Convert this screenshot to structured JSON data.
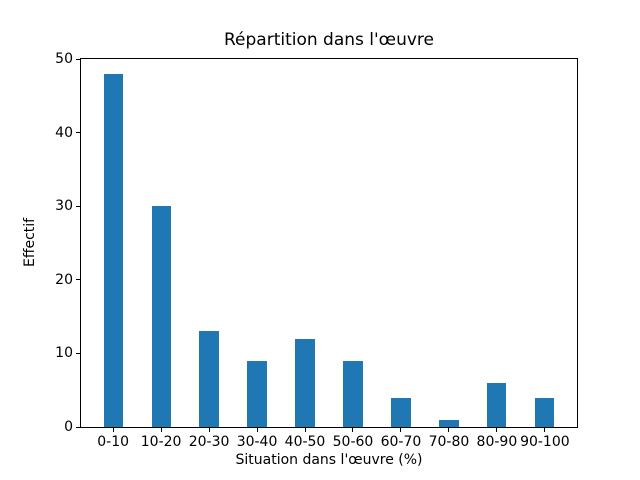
{
  "chart_data": {
    "type": "bar",
    "title": "Répartition dans l'œuvre",
    "xlabel": "Situation dans l'œuvre (%)",
    "ylabel": "Effectif",
    "categories": [
      "0-10",
      "10-20",
      "20-30",
      "30-40",
      "40-50",
      "50-60",
      "60-70",
      "70-80",
      "80-90",
      "90-100"
    ],
    "values": [
      48,
      30,
      13,
      9,
      12,
      9,
      4,
      1,
      6,
      4
    ],
    "ylim": [
      0,
      50
    ],
    "yticks": [
      0,
      10,
      20,
      30,
      40,
      50
    ],
    "xlim": [
      -0.67,
      9.67
    ],
    "bar_width": 0.4,
    "bar_color": "#1f77b4",
    "background_color": "#ffffff",
    "spine_color": "#000000",
    "grid": false,
    "legend": "none"
  }
}
